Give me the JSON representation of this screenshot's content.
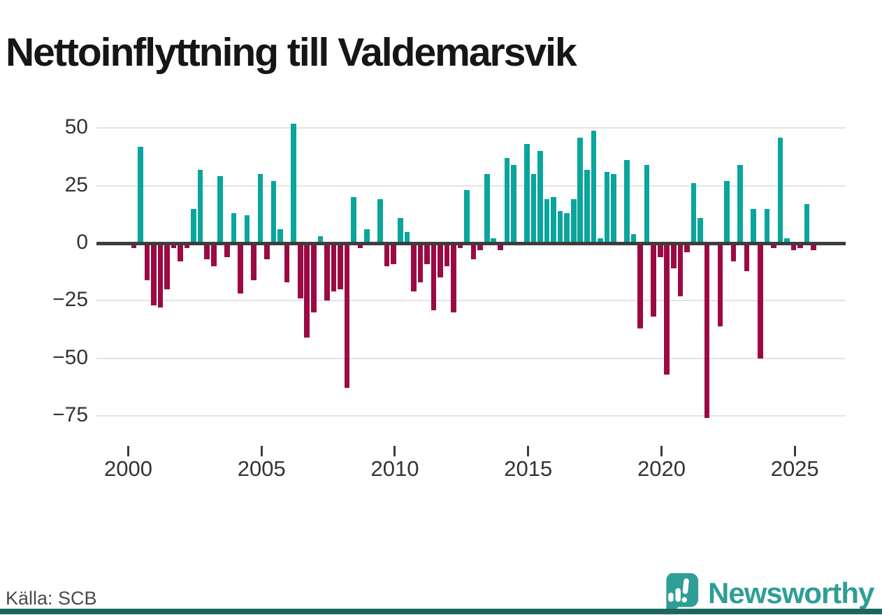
{
  "title": "Nettoinflyttning till Valdemarsvik",
  "source": "Källa: SCB",
  "logo": {
    "text": "Newsworthy",
    "icon": "newsworthy-speech-bubble-bar-chart-icon"
  },
  "colors": {
    "positive": "#0aa59c",
    "negative": "#9c0a43",
    "axis": "#3d3d3d",
    "grid": "#e4e4e4",
    "tick_label": "#333333",
    "title_text": "#161616",
    "source_text": "#4a4a4a",
    "logo_teal": "#2f9e97",
    "footer_strip": "#1d6660"
  },
  "chart_data": {
    "type": "bar",
    "title": "Nettoinflyttning till Valdemarsvik",
    "xlabel": "",
    "ylabel": "",
    "x_unit": "quarter",
    "grid": "horizontal",
    "legend": "none",
    "ylim": [
      -80,
      55
    ],
    "y_ticks": [
      50,
      25,
      0,
      -25,
      -50,
      -75
    ],
    "x_tick_years": [
      2000,
      2005,
      2010,
      2015,
      2020,
      2025
    ],
    "series": [
      {
        "name": "Nettoinflyttning",
        "points": [
          {
            "q": "2000Q1",
            "v": -2
          },
          {
            "q": "2000Q2",
            "v": 42
          },
          {
            "q": "2000Q3",
            "v": -16
          },
          {
            "q": "2000Q4",
            "v": -27
          },
          {
            "q": "2001Q1",
            "v": -28
          },
          {
            "q": "2001Q2",
            "v": -20
          },
          {
            "q": "2001Q3",
            "v": -2
          },
          {
            "q": "2001Q4",
            "v": -8
          },
          {
            "q": "2002Q1",
            "v": -2
          },
          {
            "q": "2002Q2",
            "v": 15
          },
          {
            "q": "2002Q3",
            "v": 32
          },
          {
            "q": "2002Q4",
            "v": -7
          },
          {
            "q": "2003Q1",
            "v": -10
          },
          {
            "q": "2003Q2",
            "v": 29
          },
          {
            "q": "2003Q3",
            "v": -6
          },
          {
            "q": "2003Q4",
            "v": 13
          },
          {
            "q": "2004Q1",
            "v": -22
          },
          {
            "q": "2004Q2",
            "v": 12
          },
          {
            "q": "2004Q3",
            "v": -16
          },
          {
            "q": "2004Q4",
            "v": 30
          },
          {
            "q": "2005Q1",
            "v": -7
          },
          {
            "q": "2005Q2",
            "v": 27
          },
          {
            "q": "2005Q3",
            "v": 6
          },
          {
            "q": "2005Q4",
            "v": -17
          },
          {
            "q": "2006Q1",
            "v": 52
          },
          {
            "q": "2006Q2",
            "v": -24
          },
          {
            "q": "2006Q3",
            "v": -41
          },
          {
            "q": "2006Q4",
            "v": -30
          },
          {
            "q": "2007Q1",
            "v": 3
          },
          {
            "q": "2007Q2",
            "v": -25
          },
          {
            "q": "2007Q3",
            "v": -21
          },
          {
            "q": "2007Q4",
            "v": -20
          },
          {
            "q": "2008Q1",
            "v": -63
          },
          {
            "q": "2008Q2",
            "v": 20
          },
          {
            "q": "2008Q3",
            "v": -2
          },
          {
            "q": "2008Q4",
            "v": 6
          },
          {
            "q": "2009Q1",
            "v": 0
          },
          {
            "q": "2009Q2",
            "v": 19
          },
          {
            "q": "2009Q3",
            "v": -10
          },
          {
            "q": "2009Q4",
            "v": -9
          },
          {
            "q": "2010Q1",
            "v": 11
          },
          {
            "q": "2010Q2",
            "v": 5
          },
          {
            "q": "2010Q3",
            "v": -21
          },
          {
            "q": "2010Q4",
            "v": -17
          },
          {
            "q": "2011Q1",
            "v": -9
          },
          {
            "q": "2011Q2",
            "v": -29
          },
          {
            "q": "2011Q3",
            "v": -15
          },
          {
            "q": "2011Q4",
            "v": -10
          },
          {
            "q": "2012Q1",
            "v": -30
          },
          {
            "q": "2012Q2",
            "v": -2
          },
          {
            "q": "2012Q3",
            "v": 23
          },
          {
            "q": "2012Q4",
            "v": -7
          },
          {
            "q": "2013Q1",
            "v": -3
          },
          {
            "q": "2013Q2",
            "v": 30
          },
          {
            "q": "2013Q3",
            "v": 2
          },
          {
            "q": "2013Q4",
            "v": -3
          },
          {
            "q": "2014Q1",
            "v": 37
          },
          {
            "q": "2014Q2",
            "v": 34
          },
          {
            "q": "2014Q3",
            "v": 0
          },
          {
            "q": "2014Q4",
            "v": 43
          },
          {
            "q": "2015Q1",
            "v": 30
          },
          {
            "q": "2015Q2",
            "v": 40
          },
          {
            "q": "2015Q3",
            "v": 19
          },
          {
            "q": "2015Q4",
            "v": 20
          },
          {
            "q": "2016Q1",
            "v": 14
          },
          {
            "q": "2016Q2",
            "v": 13
          },
          {
            "q": "2016Q3",
            "v": 19
          },
          {
            "q": "2016Q4",
            "v": 46
          },
          {
            "q": "2017Q1",
            "v": 32
          },
          {
            "q": "2017Q2",
            "v": 49
          },
          {
            "q": "2017Q3",
            "v": 2
          },
          {
            "q": "2017Q4",
            "v": 31
          },
          {
            "q": "2018Q1",
            "v": 30
          },
          {
            "q": "2018Q2",
            "v": 0
          },
          {
            "q": "2018Q3",
            "v": 36
          },
          {
            "q": "2018Q4",
            "v": 4
          },
          {
            "q": "2019Q1",
            "v": -37
          },
          {
            "q": "2019Q2",
            "v": 34
          },
          {
            "q": "2019Q3",
            "v": -32
          },
          {
            "q": "2019Q4",
            "v": -6
          },
          {
            "q": "2020Q1",
            "v": -57
          },
          {
            "q": "2020Q2",
            "v": -11
          },
          {
            "q": "2020Q3",
            "v": -23
          },
          {
            "q": "2020Q4",
            "v": -4
          },
          {
            "q": "2021Q1",
            "v": 26
          },
          {
            "q": "2021Q2",
            "v": 11
          },
          {
            "q": "2021Q3",
            "v": -76
          },
          {
            "q": "2021Q4",
            "v": 0
          },
          {
            "q": "2022Q1",
            "v": -36
          },
          {
            "q": "2022Q2",
            "v": 27
          },
          {
            "q": "2022Q3",
            "v": -8
          },
          {
            "q": "2022Q4",
            "v": 34
          },
          {
            "q": "2023Q1",
            "v": -12
          },
          {
            "q": "2023Q2",
            "v": 15
          },
          {
            "q": "2023Q3",
            "v": -50
          },
          {
            "q": "2023Q4",
            "v": 15
          },
          {
            "q": "2024Q1",
            "v": -2
          },
          {
            "q": "2024Q2",
            "v": 46
          },
          {
            "q": "2024Q3",
            "v": 2
          },
          {
            "q": "2024Q4",
            "v": -3
          },
          {
            "q": "2025Q1",
            "v": -2
          },
          {
            "q": "2025Q2",
            "v": 17
          },
          {
            "q": "2025Q3",
            "v": -3
          }
        ]
      }
    ]
  }
}
